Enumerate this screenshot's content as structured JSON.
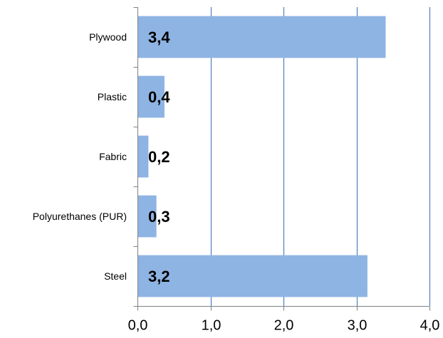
{
  "chart_data": {
    "type": "bar",
    "orientation": "horizontal",
    "categories": [
      "Plywood",
      "Plastic",
      "Fabric",
      "Polyurethanes (PUR)",
      "Steel"
    ],
    "values": [
      3.4,
      0.37,
      0.15,
      0.26,
      3.15
    ],
    "data_labels": [
      "3,4",
      "0,4",
      "0,2",
      "0,3",
      "3,2"
    ],
    "xlim": [
      0,
      4
    ],
    "x_ticks": [
      0,
      1,
      2,
      3,
      4
    ],
    "x_tick_labels": [
      "0,0",
      "1,0",
      "2,0",
      "3,0",
      "4,0"
    ],
    "grid": "vertical",
    "legend": "none",
    "colors": {
      "bar": "#8EB4E3",
      "grid": "#4F81BD",
      "axis": "#808080"
    }
  }
}
